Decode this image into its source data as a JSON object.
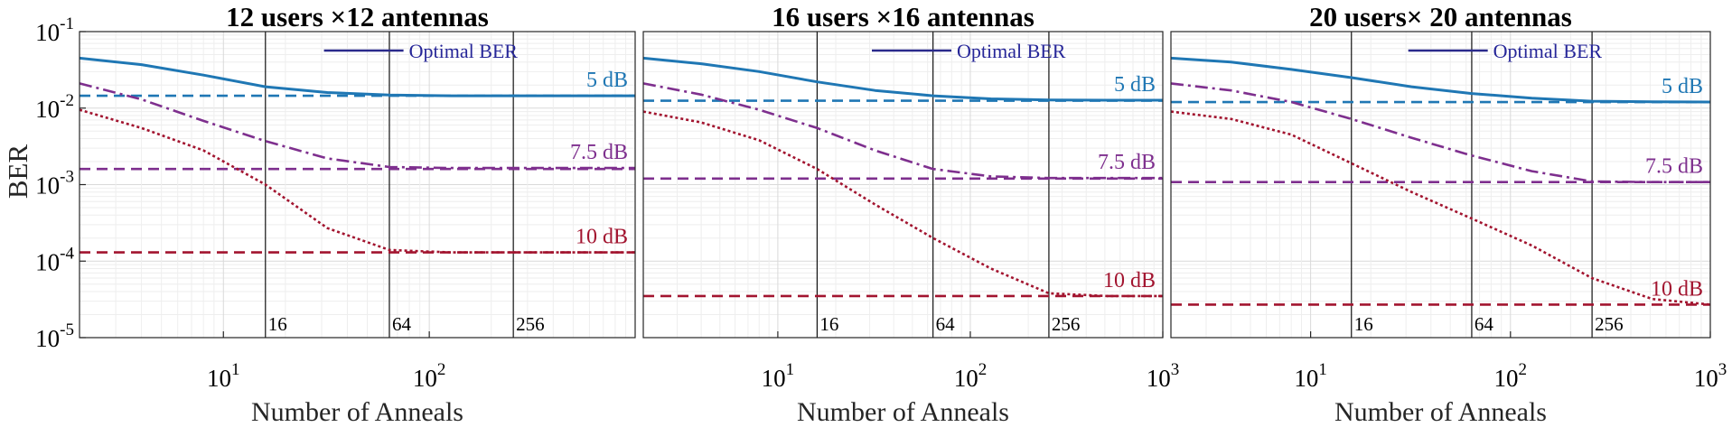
{
  "ylabel": "BER",
  "legend": {
    "label": "Optimal BER",
    "color": "#2a2a8c"
  },
  "colors": {
    "5 dB": "#1f77b4",
    "7.5 dB": "#7e2f8e",
    "10 dB": "#a2142f"
  },
  "chart_data": [
    {
      "type": "line",
      "title": "12 users ×12 antennas",
      "xlabel": "Number of Anneals",
      "yscale": "log",
      "xscale": "log",
      "xlim": [
        2,
        1000
      ],
      "ylim": [
        1e-05,
        0.1
      ],
      "xticks": [
        {
          "value": 10,
          "base": "10",
          "exp": "1"
        },
        {
          "value": 100,
          "base": "10",
          "exp": "2"
        }
      ],
      "yticks": [
        {
          "value": 0.1,
          "base": "10",
          "exp": "-1"
        },
        {
          "value": 0.01,
          "base": "10",
          "exp": "-2"
        },
        {
          "value": 0.001,
          "base": "10",
          "exp": "-3"
        },
        {
          "value": 0.0001,
          "base": "10",
          "exp": "-4"
        },
        {
          "value": 1e-05,
          "base": "10",
          "exp": "-5"
        }
      ],
      "vlines": [
        {
          "x": 16,
          "label": "16"
        },
        {
          "x": 64,
          "label": "64"
        },
        {
          "x": 256,
          "label": "256"
        }
      ],
      "series": [
        {
          "name": "5 dB",
          "x": [
            2,
            4,
            8,
            16,
            32,
            64,
            128,
            256,
            512,
            1000
          ],
          "y": [
            0.045,
            0.037,
            0.027,
            0.019,
            0.016,
            0.0148,
            0.0145,
            0.0145,
            0.0145,
            0.0145
          ],
          "optimal": 0.0145
        },
        {
          "name": "7.5 dB",
          "x": [
            2,
            4,
            8,
            16,
            32,
            64,
            128,
            256,
            512,
            1000
          ],
          "y": [
            0.021,
            0.013,
            0.0068,
            0.0037,
            0.0022,
            0.0017,
            0.00165,
            0.00165,
            0.00165,
            0.00165
          ],
          "optimal": 0.0016
        },
        {
          "name": "10 dB",
          "x": [
            2,
            4,
            8,
            16,
            32,
            64,
            128,
            256,
            512,
            1000
          ],
          "y": [
            0.0095,
            0.0055,
            0.0028,
            0.001,
            0.00027,
            0.00014,
            0.00013,
            0.00013,
            0.00013,
            0.00013
          ],
          "optimal": 0.00013
        }
      ]
    },
    {
      "type": "line",
      "title": "16 users ×16 antennas",
      "xlabel": "Number of Anneals",
      "yscale": "log",
      "xscale": "log",
      "xlim": [
        2,
        1000
      ],
      "ylim": [
        1e-05,
        0.1
      ],
      "xticks": [
        {
          "value": 10,
          "base": "10",
          "exp": "1"
        },
        {
          "value": 100,
          "base": "10",
          "exp": "2"
        },
        {
          "value": 1000,
          "base": "10",
          "exp": "3"
        }
      ],
      "yticks": [],
      "vlines": [
        {
          "x": 16,
          "label": "16"
        },
        {
          "x": 64,
          "label": "64"
        },
        {
          "x": 256,
          "label": "256"
        }
      ],
      "series": [
        {
          "name": "5 dB",
          "x": [
            2,
            4,
            8,
            16,
            32,
            64,
            128,
            256,
            512,
            1000
          ],
          "y": [
            0.045,
            0.038,
            0.03,
            0.022,
            0.017,
            0.0145,
            0.0132,
            0.0128,
            0.0127,
            0.0127
          ],
          "optimal": 0.0125
        },
        {
          "name": "7.5 dB",
          "x": [
            2,
            4,
            8,
            16,
            32,
            64,
            128,
            256,
            512,
            1000
          ],
          "y": [
            0.021,
            0.015,
            0.0095,
            0.0055,
            0.0028,
            0.0016,
            0.00128,
            0.00122,
            0.00122,
            0.00122
          ],
          "optimal": 0.0012
        },
        {
          "name": "10 dB",
          "x": [
            2,
            4,
            8,
            16,
            32,
            64,
            128,
            256,
            512,
            1000
          ],
          "y": [
            0.009,
            0.0065,
            0.0038,
            0.0016,
            0.00055,
            0.0002,
            8e-05,
            3.8e-05,
            3.5e-05,
            3.5e-05
          ],
          "optimal": 3.5e-05
        }
      ]
    },
    {
      "type": "line",
      "title": "20 users× 20 antennas",
      "xlabel": "Number of Anneals",
      "yscale": "log",
      "xscale": "log",
      "xlim": [
        2,
        1000
      ],
      "ylim": [
        1e-05,
        0.1
      ],
      "xticks": [
        {
          "value": 10,
          "base": "10",
          "exp": "1"
        },
        {
          "value": 100,
          "base": "10",
          "exp": "2"
        },
        {
          "value": 1000,
          "base": "10",
          "exp": "3"
        }
      ],
      "yticks": [],
      "vlines": [
        {
          "x": 16,
          "label": "16"
        },
        {
          "x": 64,
          "label": "64"
        },
        {
          "x": 256,
          "label": "256"
        }
      ],
      "series": [
        {
          "name": "5 dB",
          "x": [
            2,
            4,
            8,
            16,
            32,
            64,
            128,
            256,
            512,
            1000
          ],
          "y": [
            0.045,
            0.04,
            0.032,
            0.025,
            0.019,
            0.0155,
            0.0135,
            0.0123,
            0.0121,
            0.012
          ],
          "optimal": 0.012
        },
        {
          "name": "7.5 dB",
          "x": [
            2,
            4,
            8,
            16,
            32,
            64,
            128,
            256,
            512,
            1000
          ],
          "y": [
            0.021,
            0.017,
            0.012,
            0.0072,
            0.0041,
            0.0024,
            0.0015,
            0.0011,
            0.00108,
            0.00108
          ],
          "optimal": 0.00108
        },
        {
          "name": "10 dB",
          "x": [
            2,
            4,
            8,
            16,
            32,
            64,
            128,
            256,
            512,
            1000
          ],
          "y": [
            0.009,
            0.0072,
            0.0045,
            0.0019,
            0.0008,
            0.00036,
            0.00016,
            6e-05,
            3.2e-05,
            2.7e-05
          ],
          "optimal": 2.7e-05
        }
      ]
    }
  ]
}
